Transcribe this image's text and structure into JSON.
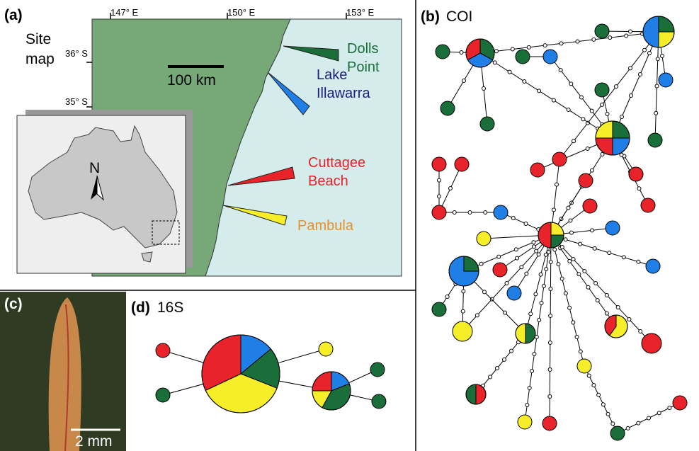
{
  "panels": {
    "a": {
      "label": "(a)",
      "title_lines": [
        "Site",
        "map"
      ],
      "lon_ticks": [
        "147° E",
        "150° E",
        "153° E"
      ],
      "lat_ticks": [
        "36° S",
        "35° S"
      ],
      "scale_bar": "100 km",
      "north": "N",
      "sites": [
        {
          "lines": [
            "Dolls",
            "Point"
          ],
          "color": "#1a6e3a",
          "text_color": "#1a6e3a"
        },
        {
          "lines": [
            "Lake",
            "Illawarra"
          ],
          "color": "#1f7fe6",
          "text_color": "#1c1c7a"
        },
        {
          "lines": [
            "Cuttagee",
            "Beach"
          ],
          "color": "#e8232a",
          "text_color": "#e8232a"
        },
        {
          "lines": [
            "Pambula"
          ],
          "color": "#f7ee2a",
          "text_color": "#e8902a"
        }
      ]
    },
    "b": {
      "label": "(b)",
      "title": "COI"
    },
    "c": {
      "label": "(c)",
      "scale_bar": "2 mm"
    },
    "d": {
      "label": "(d)",
      "title": "16S"
    }
  }
}
